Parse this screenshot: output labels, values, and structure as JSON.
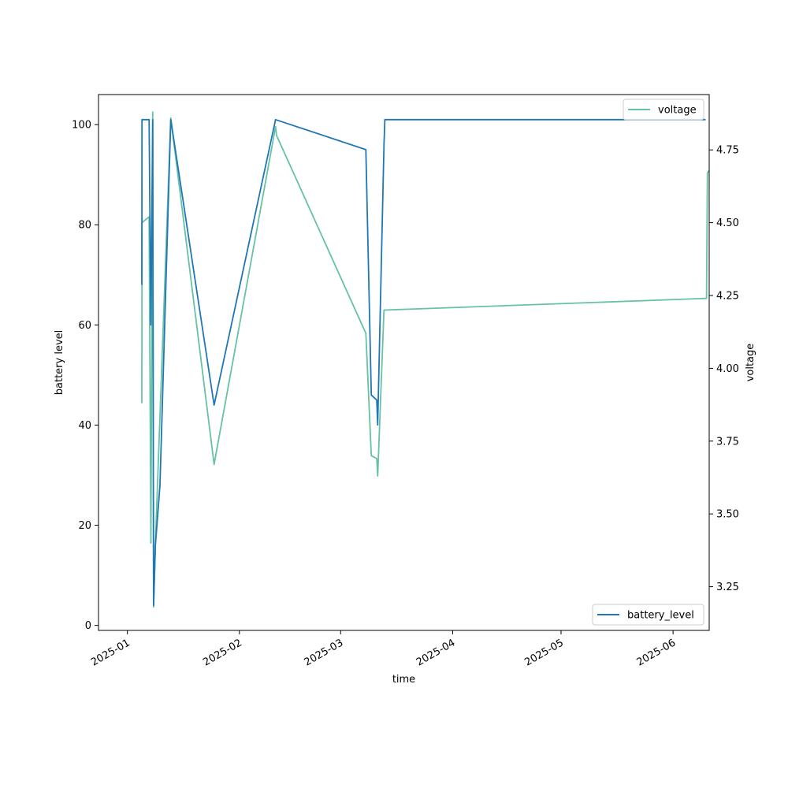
{
  "chart_data": {
    "type": "line",
    "xlabel": "time",
    "ylabel_left": "battery level",
    "ylabel_right": "voltage",
    "xlim": [
      "2024-12-24",
      "2025-06-11"
    ],
    "ylim_left": [
      -1,
      106
    ],
    "ylim_right": [
      3.1,
      4.94
    ],
    "x_ticks": [
      "2025-01",
      "2025-02",
      "2025-03",
      "2025-04",
      "2025-05",
      "2025-06"
    ],
    "y_ticks_left": [
      0,
      20,
      40,
      60,
      80,
      100
    ],
    "y_ticks_right": [
      3.25,
      3.5,
      3.75,
      4.0,
      4.25,
      4.5,
      4.75
    ],
    "y_tick_labels_right": [
      "3.25",
      "3.50",
      "3.75",
      "4.00",
      "4.25",
      "4.50",
      "4.75"
    ],
    "grid": false,
    "series": [
      {
        "name": "battery_level",
        "axis": "left",
        "color": "#1f77b4",
        "legend_position": "lower-right",
        "points": [
          [
            "2025-01-05T00:00",
            68
          ],
          [
            "2025-01-05T01:00",
            101
          ],
          [
            "2025-01-07T00:00",
            101
          ],
          [
            "2025-01-07T12:00",
            60
          ],
          [
            "2025-01-08T00:00",
            101
          ],
          [
            "2025-01-08T06:00",
            4
          ],
          [
            "2025-01-08T18:00",
            16
          ],
          [
            "2025-01-10T00:00",
            28
          ],
          [
            "2025-01-13T00:00",
            101
          ],
          [
            "2025-01-25T00:00",
            44
          ],
          [
            "2025-02-11T00:00",
            101
          ],
          [
            "2025-03-08T00:00",
            95
          ],
          [
            "2025-03-09T12:00",
            46
          ],
          [
            "2025-03-11T00:00",
            45
          ],
          [
            "2025-03-11T06:00",
            40
          ],
          [
            "2025-03-13T00:00",
            96
          ],
          [
            "2025-03-13T06:00",
            101
          ],
          [
            "2025-06-10T00:00",
            101
          ]
        ]
      },
      {
        "name": "voltage",
        "axis": "right",
        "color": "#66c2a5",
        "legend_position": "upper-right",
        "points": [
          [
            "2025-01-05T00:00",
            3.88
          ],
          [
            "2025-01-05T01:00",
            4.5
          ],
          [
            "2025-01-07T00:00",
            4.52
          ],
          [
            "2025-01-07T12:00",
            3.4
          ],
          [
            "2025-01-08T00:00",
            4.88
          ],
          [
            "2025-01-08T06:00",
            3.18
          ],
          [
            "2025-01-08T18:00",
            3.4
          ],
          [
            "2025-01-13T00:00",
            4.86
          ],
          [
            "2025-01-25T00:00",
            3.67
          ],
          [
            "2025-02-11T00:00",
            4.83
          ],
          [
            "2025-02-11T06:00",
            4.8
          ],
          [
            "2025-03-08T00:00",
            4.12
          ],
          [
            "2025-03-09T12:00",
            3.7
          ],
          [
            "2025-03-11T00:00",
            3.69
          ],
          [
            "2025-03-11T06:00",
            3.63
          ],
          [
            "2025-03-13T00:00",
            4.2
          ],
          [
            "2025-06-10T00:00",
            4.24
          ],
          [
            "2025-06-10T06:00",
            4.24
          ],
          [
            "2025-06-10T12:00",
            4.67
          ],
          [
            "2025-06-11T00:00",
            4.68
          ]
        ]
      }
    ]
  }
}
